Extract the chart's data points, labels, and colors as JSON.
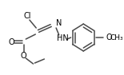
{
  "bg": "#ffffff",
  "lc": "#4a4a4a",
  "tc": "#000000",
  "lw": 1.1,
  "fs": 7.0,
  "fw": 1.55,
  "fh": 0.94,
  "dpi": 100,
  "xlim": [
    0,
    155
  ],
  "ylim": [
    0,
    94
  ]
}
